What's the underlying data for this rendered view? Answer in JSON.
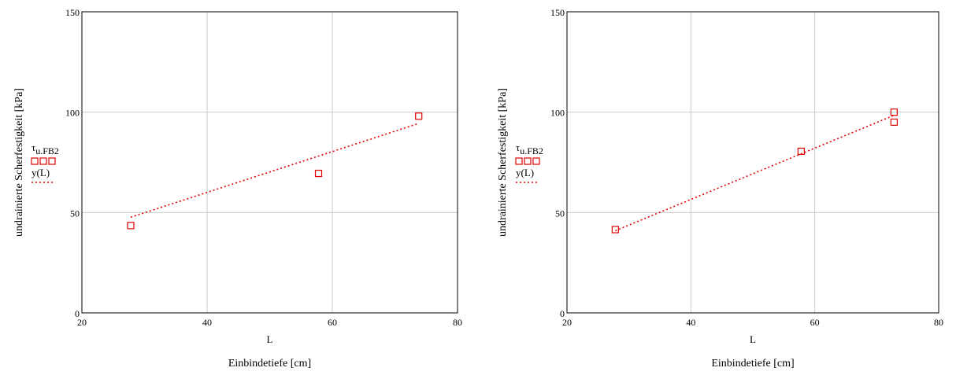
{
  "chart_data": [
    {
      "type": "scatter",
      "xlabel": "Einbindetiefe [cm]",
      "x_var": "L",
      "ylabel": "undrainierte Scherfestigkeit [kPa]",
      "xlim": [
        20,
        80
      ],
      "ylim": [
        0,
        150
      ],
      "xticks": [
        20,
        40,
        60,
        80
      ],
      "yticks": [
        0,
        50,
        100,
        150
      ],
      "grid": true,
      "legend_position": "left",
      "series": [
        {
          "name": "τu.FB2",
          "label_main": "τ",
          "label_sub": "u.FB2",
          "kind": "points",
          "marker": "open-square",
          "color": "#e00000",
          "points": [
            [
              27.8,
              43.5
            ],
            [
              57.8,
              69.5
            ],
            [
              73.8,
              98.0
            ]
          ]
        },
        {
          "name": "y(L)",
          "kind": "fit-line",
          "style": "dotted",
          "color": "#e00000",
          "x_range": [
            27.8,
            73.8
          ],
          "intercept": 19.4,
          "slope": 1.016
        }
      ]
    },
    {
      "type": "scatter",
      "xlabel": "Einbindetiefe [cm]",
      "x_var": "L",
      "ylabel": "undrainierte Scherfestigkeit [kPa]",
      "xlim": [
        20,
        80
      ],
      "ylim": [
        0,
        150
      ],
      "xticks": [
        20,
        40,
        60,
        80
      ],
      "yticks": [
        0,
        50,
        100,
        150
      ],
      "grid": true,
      "legend_position": "left",
      "series": [
        {
          "name": "τu.FB2",
          "label_main": "τ",
          "label_sub": "u.FB2",
          "kind": "points",
          "marker": "open-square",
          "color": "#e00000",
          "points": [
            [
              27.8,
              41.5
            ],
            [
              57.8,
              80.5
            ],
            [
              72.8,
              100.0
            ],
            [
              72.8,
              95.0
            ]
          ]
        },
        {
          "name": "y(L)",
          "kind": "fit-line",
          "style": "dotted",
          "color": "#e00000",
          "x_range": [
            27.8,
            72.8
          ],
          "intercept": 5.4,
          "slope": 1.278
        }
      ]
    }
  ]
}
